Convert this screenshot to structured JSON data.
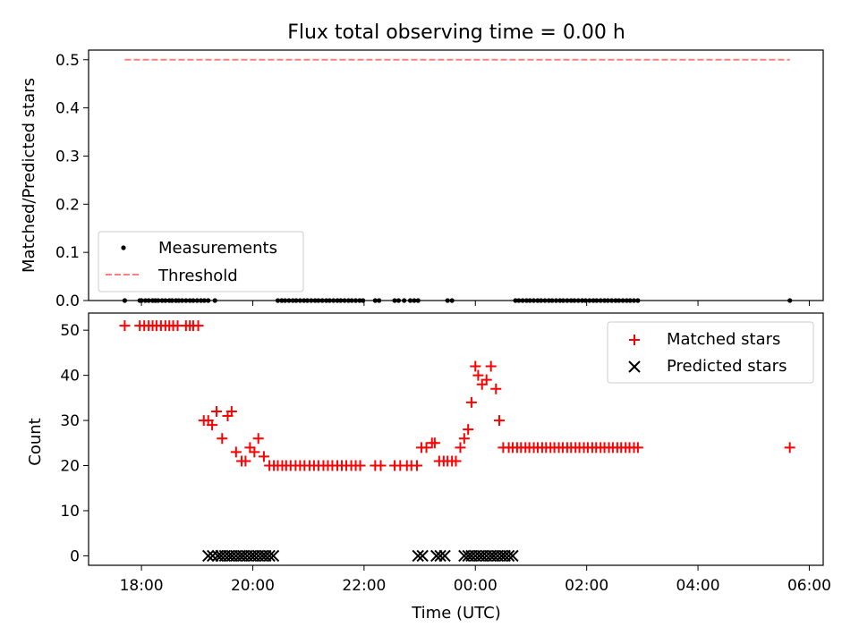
{
  "chart_data": [
    {
      "type": "scatter",
      "title": "Flux total observing time = 0.00 h",
      "xlabel": "",
      "ylabel": "Matched/Predicted stars",
      "ylim": [
        0,
        0.52
      ],
      "yticks": [
        "0.0",
        "0.1",
        "0.2",
        "0.3",
        "0.4",
        "0.5"
      ],
      "xlim": [
        17.05,
        30.25
      ],
      "threshold": 0.5,
      "threshold_range": [
        17.7,
        29.65
      ],
      "legend": {
        "position": "lower-left",
        "entries": [
          "Measurements",
          "Threshold"
        ]
      },
      "series": [
        {
          "name": "Measurements",
          "color": "#000000",
          "marker": "dot",
          "x": [
            17.7,
            17.97,
            18.0,
            18.07,
            18.13,
            18.2,
            18.25,
            18.3,
            18.37,
            18.43,
            18.5,
            18.55,
            18.62,
            18.67,
            18.73,
            18.8,
            18.87,
            18.93,
            19.0,
            19.07,
            19.13,
            19.2,
            19.32,
            20.45,
            20.52,
            20.58,
            20.65,
            20.72,
            20.78,
            20.85,
            20.92,
            20.98,
            21.05,
            21.12,
            21.18,
            21.25,
            21.32,
            21.38,
            21.45,
            21.52,
            21.58,
            21.65,
            21.72,
            21.78,
            21.85,
            21.92,
            21.98,
            22.2,
            22.27,
            22.55,
            22.62,
            22.72,
            22.83,
            22.9,
            22.97,
            23.5,
            23.58,
            24.72,
            24.78,
            24.85,
            24.92,
            24.98,
            25.05,
            25.12,
            25.18,
            25.25,
            25.32,
            25.38,
            25.45,
            25.52,
            25.58,
            25.65,
            25.72,
            25.78,
            25.85,
            25.92,
            25.98,
            26.05,
            26.12,
            26.18,
            26.25,
            26.32,
            26.38,
            26.45,
            26.52,
            26.58,
            26.65,
            26.72,
            26.78,
            26.85,
            26.92,
            29.65
          ],
          "y": [
            0,
            0,
            0,
            0,
            0,
            0,
            0,
            0,
            0,
            0,
            0,
            0,
            0,
            0,
            0,
            0,
            0,
            0,
            0,
            0,
            0,
            0,
            0,
            0,
            0,
            0,
            0,
            0,
            0,
            0,
            0,
            0,
            0,
            0,
            0,
            0,
            0,
            0,
            0,
            0,
            0,
            0,
            0,
            0,
            0,
            0,
            0,
            0,
            0,
            0,
            0,
            0,
            0,
            0,
            0,
            0,
            0,
            0,
            0,
            0,
            0,
            0,
            0,
            0,
            0,
            0,
            0,
            0,
            0,
            0,
            0,
            0,
            0,
            0,
            0,
            0,
            0,
            0,
            0,
            0,
            0,
            0,
            0,
            0,
            0,
            0,
            0,
            0,
            0,
            0,
            0,
            0
          ]
        },
        {
          "name": "Threshold",
          "color": "#ff7f7f",
          "style": "dashed",
          "value": 0.5
        }
      ]
    },
    {
      "type": "scatter",
      "title": "",
      "xlabel": "Time (UTC)",
      "ylabel": "Count",
      "ylim": [
        -2.1,
        53.8
      ],
      "yticks": [
        "0",
        "10",
        "20",
        "30",
        "40",
        "50"
      ],
      "xlim": [
        17.05,
        30.25
      ],
      "xticks": [
        "18:00",
        "20:00",
        "22:00",
        "00:00",
        "02:00",
        "04:00",
        "06:00"
      ],
      "legend": {
        "position": "upper-right",
        "entries": [
          "Matched stars",
          "Predicted stars"
        ]
      },
      "series": [
        {
          "name": "Matched stars",
          "color": "#ff0000",
          "marker": "plus",
          "x": [
            17.7,
            17.97,
            18.05,
            18.13,
            18.2,
            18.27,
            18.35,
            18.43,
            18.5,
            18.57,
            18.65,
            18.8,
            18.87,
            18.93,
            19.02,
            19.12,
            19.2,
            19.27,
            19.35,
            19.45,
            19.55,
            19.62,
            19.7,
            19.8,
            19.87,
            19.95,
            20.03,
            20.1,
            20.2,
            20.3,
            20.38,
            20.45,
            20.53,
            20.6,
            20.68,
            20.77,
            20.85,
            20.93,
            21.02,
            21.1,
            21.18,
            21.27,
            21.35,
            21.43,
            21.52,
            21.6,
            21.68,
            21.77,
            21.85,
            21.93,
            22.2,
            22.3,
            22.55,
            22.65,
            22.77,
            22.85,
            22.95,
            23.03,
            23.12,
            23.22,
            23.27,
            23.35,
            23.43,
            23.5,
            23.58,
            23.65,
            23.73,
            23.8,
            23.87,
            23.93,
            24.0,
            24.05,
            24.12,
            24.2,
            24.28,
            24.37,
            24.43,
            24.5,
            24.6,
            24.67,
            24.75,
            24.82,
            24.9,
            24.97,
            25.05,
            25.12,
            25.2,
            25.27,
            25.35,
            25.42,
            25.5,
            25.57,
            25.65,
            25.72,
            25.8,
            25.87,
            25.95,
            26.02,
            26.1,
            26.17,
            26.25,
            26.32,
            26.4,
            26.47,
            26.55,
            26.62,
            26.7,
            26.77,
            26.85,
            26.92,
            29.65
          ],
          "y": [
            51,
            51,
            51,
            51,
            51,
            51,
            51,
            51,
            51,
            51,
            51,
            51,
            51,
            51,
            51,
            30,
            30,
            29,
            32,
            26,
            31,
            32,
            23,
            21,
            21,
            24,
            23,
            26,
            22,
            20,
            20,
            20,
            20,
            20,
            20,
            20,
            20,
            20,
            20,
            20,
            20,
            20,
            20,
            20,
            20,
            20,
            20,
            20,
            20,
            20,
            20,
            20,
            20,
            20,
            20,
            20,
            20,
            24,
            24,
            25,
            25,
            21,
            21,
            21,
            21,
            21,
            24,
            26,
            28,
            34,
            42,
            40,
            38,
            39,
            42,
            37,
            30,
            24,
            24,
            24,
            24,
            24,
            24,
            24,
            24,
            24,
            24,
            24,
            24,
            24,
            24,
            24,
            24,
            24,
            24,
            24,
            24,
            24,
            24,
            24,
            24,
            24,
            24,
            24,
            24,
            24,
            24,
            24,
            24,
            24,
            24
          ]
        },
        {
          "name": "Predicted stars",
          "color": "#000000",
          "marker": "x",
          "x": [
            19.2,
            19.28,
            19.37,
            19.43,
            19.5,
            19.57,
            19.63,
            19.7,
            19.77,
            19.83,
            19.9,
            19.97,
            20.03,
            20.1,
            20.17,
            20.23,
            20.3,
            20.37,
            22.97,
            23.05,
            23.3,
            23.37,
            23.45,
            23.8,
            23.87,
            23.93,
            24.0,
            24.07,
            24.13,
            24.2,
            24.27,
            24.33,
            24.4,
            24.47,
            24.53,
            24.6,
            24.67
          ],
          "y": [
            0,
            0,
            0,
            0,
            0,
            0,
            0,
            0,
            0,
            0,
            0,
            0,
            0,
            0,
            0,
            0,
            0,
            0,
            0,
            0,
            0,
            0,
            0,
            0,
            0,
            0,
            0,
            0,
            0,
            0,
            0,
            0,
            0,
            0,
            0,
            0,
            0
          ]
        }
      ]
    }
  ]
}
